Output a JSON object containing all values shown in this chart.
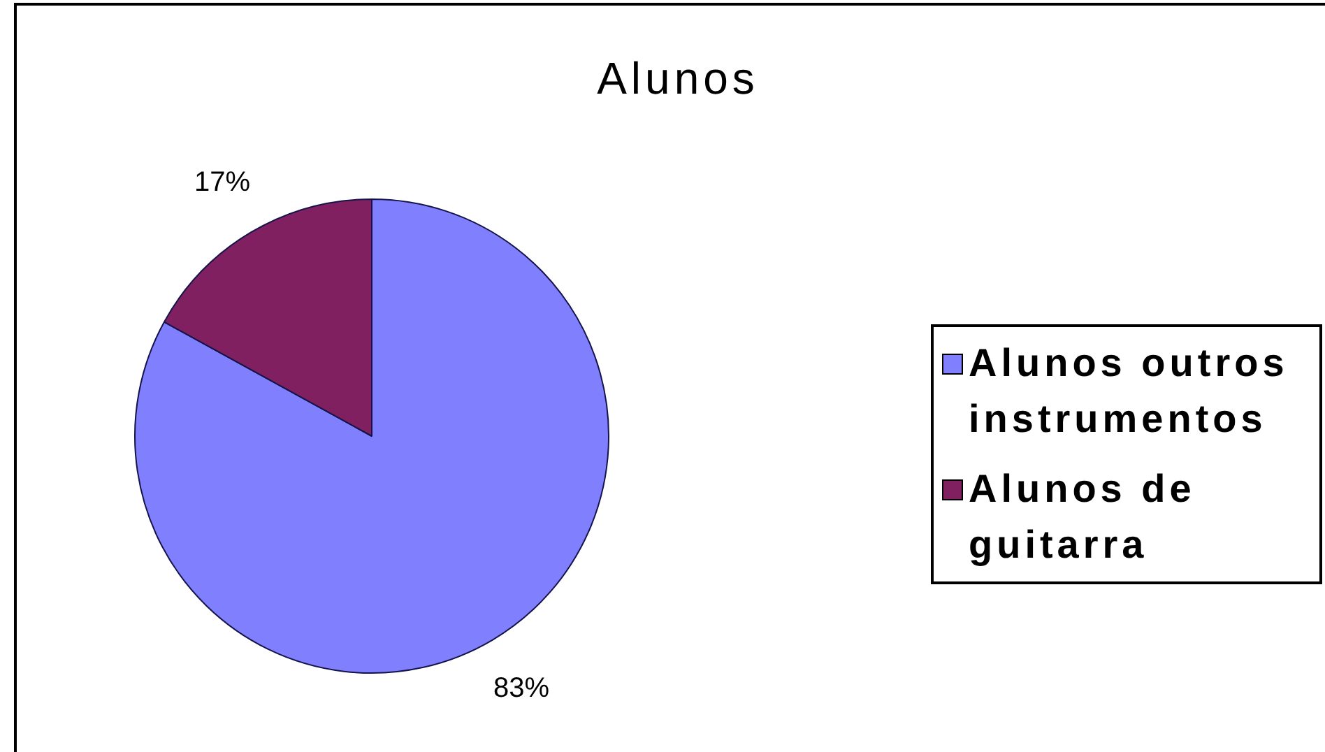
{
  "chart_data": {
    "type": "pie",
    "title": "Alunos",
    "categories": [
      "Alunos outros instrumentos",
      "Alunos de guitarra"
    ],
    "values": [
      83,
      17
    ],
    "colors": [
      "#8080ff",
      "#802060"
    ],
    "value_labels": [
      "83%",
      "17%"
    ],
    "legend": "right"
  }
}
